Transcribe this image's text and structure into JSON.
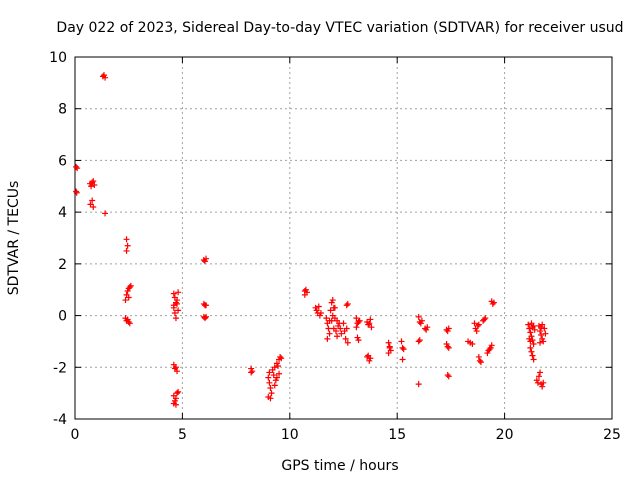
{
  "chart_data": {
    "type": "scatter",
    "title": "Day 022 of 2023, Sidereal Day-to-day VTEC variation (SDTVAR) for receiver usud",
    "xlabel": "GPS time / hours",
    "ylabel": "SDTVAR / TECUs",
    "xlim": [
      0,
      25
    ],
    "ylim": [
      -4,
      10
    ],
    "xticks": [
      0,
      5,
      10,
      15,
      20,
      25
    ],
    "yticks": [
      -4,
      -2,
      0,
      2,
      4,
      6,
      8,
      10
    ],
    "xtick_labels": [
      "0",
      "5",
      "10",
      "15",
      "20",
      "25"
    ],
    "ytick_labels": [
      "-4",
      "-2",
      "0",
      "2",
      "4",
      "6",
      "8",
      "10"
    ],
    "grid": true,
    "marker": "+",
    "color": "#ff0000",
    "series": [
      {
        "name": "SDTVAR",
        "points": [
          [
            0.05,
            5.75
          ],
          [
            0.1,
            5.7
          ],
          [
            0.05,
            4.8
          ],
          [
            0.08,
            4.75
          ],
          [
            0.7,
            5.1
          ],
          [
            0.75,
            5.0
          ],
          [
            0.8,
            5.15
          ],
          [
            0.85,
            5.2
          ],
          [
            0.9,
            5.05
          ],
          [
            0.72,
            4.3
          ],
          [
            0.8,
            4.45
          ],
          [
            0.85,
            4.2
          ],
          [
            1.3,
            9.25
          ],
          [
            1.35,
            9.3
          ],
          [
            1.4,
            9.2
          ],
          [
            1.4,
            3.95
          ],
          [
            2.4,
            2.95
          ],
          [
            2.45,
            2.7
          ],
          [
            2.4,
            2.5
          ],
          [
            2.35,
            0.6
          ],
          [
            2.4,
            0.8
          ],
          [
            2.45,
            0.95
          ],
          [
            2.5,
            1.05
          ],
          [
            2.55,
            1.1
          ],
          [
            2.6,
            1.15
          ],
          [
            2.5,
            0.7
          ],
          [
            2.35,
            -0.1
          ],
          [
            2.4,
            -0.2
          ],
          [
            2.5,
            -0.25
          ],
          [
            2.55,
            -0.3
          ],
          [
            2.45,
            -0.15
          ],
          [
            4.6,
            0.85
          ],
          [
            4.65,
            0.7
          ],
          [
            4.7,
            0.5
          ],
          [
            4.6,
            0.3
          ],
          [
            4.75,
            0.6
          ],
          [
            4.8,
            0.9
          ],
          [
            4.65,
            0.1
          ],
          [
            4.7,
            -0.1
          ],
          [
            4.75,
            0.45
          ],
          [
            4.6,
            0.4
          ],
          [
            4.8,
            0.2
          ],
          [
            4.6,
            -1.9
          ],
          [
            4.7,
            -2.0
          ],
          [
            4.75,
            -2.15
          ],
          [
            4.65,
            -2.05
          ],
          [
            4.6,
            -3.1
          ],
          [
            4.65,
            -3.3
          ],
          [
            4.7,
            -3.2
          ],
          [
            4.75,
            -3.0
          ],
          [
            4.6,
            -3.4
          ],
          [
            4.7,
            -3.45
          ],
          [
            4.8,
            -2.95
          ],
          [
            6.0,
            2.15
          ],
          [
            6.05,
            2.1
          ],
          [
            6.1,
            2.2
          ],
          [
            6.0,
            0.45
          ],
          [
            6.05,
            0.4
          ],
          [
            6.1,
            0.4
          ],
          [
            6.0,
            -0.05
          ],
          [
            6.05,
            -0.1
          ],
          [
            6.1,
            -0.05
          ],
          [
            8.2,
            -2.05
          ],
          [
            8.25,
            -2.15
          ],
          [
            8.2,
            -2.2
          ],
          [
            9.0,
            -2.4
          ],
          [
            9.05,
            -2.6
          ],
          [
            9.1,
            -2.8
          ],
          [
            9.15,
            -3.0
          ],
          [
            9.0,
            -3.15
          ],
          [
            9.1,
            -3.2
          ],
          [
            9.05,
            -2.2
          ],
          [
            9.2,
            -2.1
          ],
          [
            9.25,
            -2.3
          ],
          [
            9.3,
            -2.0
          ],
          [
            9.35,
            -2.5
          ],
          [
            9.4,
            -1.85
          ],
          [
            9.45,
            -1.95
          ],
          [
            9.5,
            -1.7
          ],
          [
            9.55,
            -1.6
          ],
          [
            9.6,
            -1.65
          ],
          [
            9.5,
            -2.25
          ],
          [
            9.4,
            -2.4
          ],
          [
            9.3,
            -2.7
          ],
          [
            10.7,
            0.8
          ],
          [
            10.75,
            1.0
          ],
          [
            10.8,
            0.9
          ],
          [
            10.7,
            0.95
          ],
          [
            11.2,
            0.3
          ],
          [
            11.25,
            0.2
          ],
          [
            11.3,
            0.1
          ],
          [
            11.35,
            0.35
          ],
          [
            11.4,
            0.0
          ],
          [
            11.45,
            0.1
          ],
          [
            11.7,
            -0.1
          ],
          [
            11.75,
            -0.3
          ],
          [
            11.8,
            -0.5
          ],
          [
            11.85,
            -0.2
          ],
          [
            11.9,
            0.2
          ],
          [
            11.95,
            0.5
          ],
          [
            12.0,
            0.6
          ],
          [
            12.05,
            0.3
          ],
          [
            12.1,
            -0.1
          ],
          [
            12.15,
            -0.6
          ],
          [
            12.2,
            -0.8
          ],
          [
            12.25,
            -0.4
          ],
          [
            12.3,
            -0.3
          ],
          [
            11.75,
            -0.9
          ],
          [
            11.85,
            -0.7
          ],
          [
            11.95,
            -0.2
          ],
          [
            12.05,
            -0.5
          ],
          [
            12.0,
            0.0
          ],
          [
            12.1,
            0.3
          ],
          [
            12.2,
            -0.2
          ],
          [
            12.35,
            -0.5
          ],
          [
            12.4,
            -0.7
          ],
          [
            12.5,
            -0.3
          ],
          [
            12.55,
            -0.6
          ],
          [
            12.6,
            -0.9
          ],
          [
            12.65,
            -0.5
          ],
          [
            12.7,
            -1.05
          ],
          [
            12.7,
            0.45
          ],
          [
            12.65,
            0.4
          ],
          [
            13.1,
            -0.1
          ],
          [
            13.15,
            -0.3
          ],
          [
            13.2,
            -0.25
          ],
          [
            13.15,
            -0.85
          ],
          [
            13.2,
            -0.95
          ],
          [
            13.1,
            -0.45
          ],
          [
            13.25,
            -0.2
          ],
          [
            13.6,
            -0.25
          ],
          [
            13.65,
            -0.35
          ],
          [
            13.7,
            -0.3
          ],
          [
            13.75,
            -0.15
          ],
          [
            13.8,
            -0.45
          ],
          [
            13.65,
            -1.55
          ],
          [
            13.7,
            -1.75
          ],
          [
            13.75,
            -1.65
          ],
          [
            13.6,
            -1.6
          ],
          [
            14.6,
            -1.05
          ],
          [
            14.65,
            -1.2
          ],
          [
            14.7,
            -1.35
          ],
          [
            14.6,
            -1.45
          ],
          [
            14.65,
            -1.25
          ],
          [
            15.2,
            -1.0
          ],
          [
            15.25,
            -1.25
          ],
          [
            15.3,
            -1.3
          ],
          [
            15.25,
            -1.7
          ],
          [
            16.0,
            -0.05
          ],
          [
            16.05,
            -0.25
          ],
          [
            16.1,
            -0.3
          ],
          [
            16.15,
            -0.2
          ],
          [
            16.0,
            -1.0
          ],
          [
            16.05,
            -0.95
          ],
          [
            16.0,
            -2.65
          ],
          [
            16.3,
            -0.5
          ],
          [
            16.35,
            -0.55
          ],
          [
            16.4,
            -0.45
          ],
          [
            17.3,
            -0.55
          ],
          [
            17.35,
            -0.6
          ],
          [
            17.4,
            -0.5
          ],
          [
            17.3,
            -1.1
          ],
          [
            17.35,
            -1.2
          ],
          [
            17.4,
            -1.25
          ],
          [
            17.35,
            -2.3
          ],
          [
            17.4,
            -2.35
          ],
          [
            18.3,
            -1.0
          ],
          [
            18.4,
            -1.05
          ],
          [
            18.5,
            -1.1
          ],
          [
            18.6,
            -0.3
          ],
          [
            18.65,
            -0.5
          ],
          [
            18.7,
            -0.6
          ],
          [
            18.75,
            -0.4
          ],
          [
            18.8,
            -0.35
          ],
          [
            18.8,
            -1.6
          ],
          [
            18.85,
            -1.75
          ],
          [
            18.9,
            -1.8
          ],
          [
            19.0,
            -0.2
          ],
          [
            19.05,
            -0.15
          ],
          [
            19.1,
            -0.1
          ],
          [
            19.2,
            -1.45
          ],
          [
            19.25,
            -1.35
          ],
          [
            19.3,
            -1.3
          ],
          [
            19.35,
            -1.25
          ],
          [
            19.4,
            -1.15
          ],
          [
            19.4,
            0.55
          ],
          [
            19.45,
            0.45
          ],
          [
            19.5,
            0.5
          ],
          [
            21.1,
            -0.35
          ],
          [
            21.15,
            -0.5
          ],
          [
            21.2,
            -0.65
          ],
          [
            21.25,
            -0.8
          ],
          [
            21.3,
            -0.95
          ],
          [
            21.35,
            -1.1
          ],
          [
            21.2,
            -1.25
          ],
          [
            21.25,
            -1.4
          ],
          [
            21.3,
            -1.55
          ],
          [
            21.35,
            -1.7
          ],
          [
            21.15,
            -0.9
          ],
          [
            21.2,
            -1.0
          ],
          [
            21.3,
            -0.45
          ],
          [
            21.35,
            -0.4
          ],
          [
            21.4,
            -0.55
          ],
          [
            21.25,
            -0.3
          ],
          [
            21.6,
            -0.4
          ],
          [
            21.65,
            -0.6
          ],
          [
            21.7,
            -0.75
          ],
          [
            21.75,
            -0.9
          ],
          [
            21.8,
            -1.0
          ],
          [
            21.85,
            -0.5
          ],
          [
            21.9,
            -0.7
          ],
          [
            21.65,
            -1.05
          ],
          [
            21.7,
            -0.45
          ],
          [
            21.75,
            -0.35
          ],
          [
            21.5,
            -2.5
          ],
          [
            21.55,
            -2.6
          ],
          [
            21.6,
            -2.35
          ],
          [
            21.65,
            -2.2
          ],
          [
            21.7,
            -2.65
          ],
          [
            21.75,
            -2.75
          ],
          [
            21.8,
            -2.6
          ]
        ]
      }
    ]
  }
}
